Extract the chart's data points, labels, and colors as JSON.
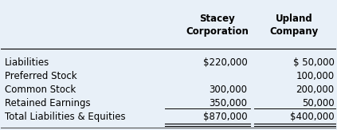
{
  "background_color": "#e8f0f8",
  "header_row": [
    "",
    "Stacey\nCorporation",
    "Upland\nCompany"
  ],
  "rows": [
    [
      "Liabilities",
      "$220,000",
      "$ 50,000"
    ],
    [
      "Preferred Stock",
      "",
      "100,000"
    ],
    [
      "Common Stock",
      "300,000",
      "200,000"
    ],
    [
      "Retained Earnings",
      "350,000",
      "50,000"
    ],
    [
      "Total Liabilities & Equities",
      "$870,000",
      "$400,000"
    ]
  ],
  "total_row_index": 4,
  "font_size": 8.5,
  "header_font_size": 8.5
}
